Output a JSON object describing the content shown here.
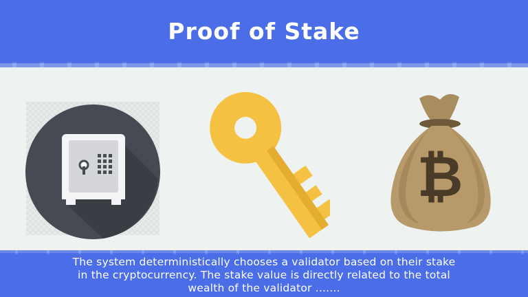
{
  "header": {
    "title": "Proof of Stake"
  },
  "icons": {
    "safe": "safe-icon",
    "key": "key-icon",
    "money_bag": "bitcoin-money-bag-icon"
  },
  "colors": {
    "banner": "#4b6ee8",
    "background": "#eef3f1",
    "key": "#f5c142",
    "bag": "#b89a6a",
    "safe_circle": "#464a52"
  },
  "description": {
    "line1": "The system deterministically chooses a validator based on their stake",
    "line2": "in the cryptocurrency. The stake value is directly related to the total",
    "line3": "wealth of the validator ......."
  }
}
